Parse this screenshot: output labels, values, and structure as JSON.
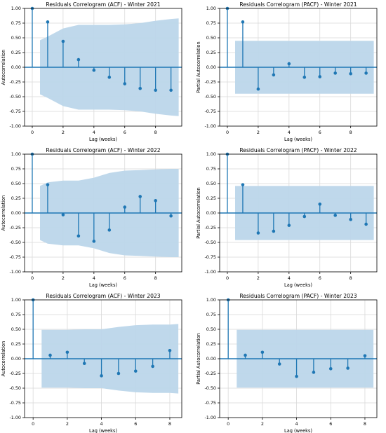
{
  "colors": {
    "stem": "#1f77b4",
    "band": "#bcd6ea",
    "grid": "#d9d9d9",
    "axis": "#000000"
  },
  "chart_data": [
    {
      "type": "stem",
      "title": "Residuals Correlogram (ACF) - Winter 2021",
      "xlabel": "Lag (weeks)",
      "ylabel": "Autocorrelation",
      "xlim": [
        -0.5,
        9.7
      ],
      "ylim": [
        -1.0,
        1.0
      ],
      "xticks": [
        0,
        2,
        4,
        6,
        8
      ],
      "yticks": [
        -1.0,
        -0.75,
        -0.5,
        -0.25,
        0.0,
        0.25,
        0.5,
        0.75,
        1.0
      ],
      "grid": true,
      "lags": [
        0,
        1,
        2,
        3,
        4,
        5,
        6,
        7,
        8,
        9
      ],
      "values": [
        1.0,
        0.77,
        0.44,
        0.13,
        -0.05,
        -0.17,
        -0.28,
        -0.36,
        -0.39,
        -0.39
      ],
      "confint": {
        "x": [
          0.5,
          1,
          2,
          3,
          4,
          5,
          6,
          7,
          8,
          9,
          9.5
        ],
        "upper": [
          0.46,
          0.52,
          0.66,
          0.72,
          0.72,
          0.72,
          0.73,
          0.75,
          0.79,
          0.82,
          0.83
        ],
        "lower": [
          -0.46,
          -0.52,
          -0.66,
          -0.72,
          -0.72,
          -0.72,
          -0.73,
          -0.75,
          -0.79,
          -0.82,
          -0.83
        ]
      }
    },
    {
      "type": "stem",
      "title": "Residuals Correlogram (PACF) - Winter 2021",
      "xlabel": "Lag (weeks)",
      "ylabel": "Partial Autocorrelation",
      "xlim": [
        -0.5,
        9.7
      ],
      "ylim": [
        -1.0,
        1.0
      ],
      "xticks": [
        0,
        2,
        4,
        6,
        8
      ],
      "yticks": [
        -1.0,
        -0.75,
        -0.5,
        -0.25,
        0.0,
        0.25,
        0.5,
        0.75,
        1.0
      ],
      "grid": true,
      "lags": [
        0,
        1,
        2,
        3,
        4,
        5,
        6,
        7,
        8,
        9
      ],
      "values": [
        1.0,
        0.77,
        -0.37,
        -0.13,
        0.06,
        -0.17,
        -0.16,
        -0.1,
        -0.11,
        -0.1
      ],
      "confint": {
        "x": [
          0.5,
          9.5
        ],
        "upper": [
          0.45,
          0.45
        ],
        "lower": [
          -0.45,
          -0.45
        ]
      }
    },
    {
      "type": "stem",
      "title": "Residuals Correlogram (ACF) - Winter 2022",
      "xlabel": "Lag (weeks)",
      "ylabel": "Autocorrelation",
      "xlim": [
        -0.5,
        9.7
      ],
      "ylim": [
        -1.0,
        1.0
      ],
      "xticks": [
        0,
        2,
        4,
        6,
        8
      ],
      "yticks": [
        -1.0,
        -0.75,
        -0.5,
        -0.25,
        0.0,
        0.25,
        0.5,
        0.75,
        1.0
      ],
      "grid": true,
      "lags": [
        0,
        1,
        2,
        3,
        4,
        5,
        6,
        7,
        8,
        9
      ],
      "values": [
        1.0,
        0.48,
        -0.03,
        -0.39,
        -0.48,
        -0.29,
        0.1,
        0.28,
        0.21,
        -0.05
      ],
      "confint": {
        "x": [
          0.5,
          1,
          2,
          3,
          4,
          5,
          6,
          7,
          8,
          9,
          9.5
        ],
        "upper": [
          0.46,
          0.52,
          0.55,
          0.55,
          0.6,
          0.68,
          0.72,
          0.73,
          0.74,
          0.75,
          0.75
        ],
        "lower": [
          -0.46,
          -0.52,
          -0.55,
          -0.55,
          -0.6,
          -0.68,
          -0.72,
          -0.73,
          -0.74,
          -0.75,
          -0.75
        ]
      }
    },
    {
      "type": "stem",
      "title": "Residuals Correlogram (PACF) - Winter 2022",
      "xlabel": "Lag (weeks)",
      "ylabel": "Partial Autocorrelation",
      "xlim": [
        -0.5,
        9.7
      ],
      "ylim": [
        -1.0,
        1.0
      ],
      "xticks": [
        0,
        2,
        4,
        6,
        8
      ],
      "yticks": [
        -1.0,
        -0.75,
        -0.5,
        -0.25,
        0.0,
        0.25,
        0.5,
        0.75,
        1.0
      ],
      "grid": true,
      "lags": [
        0,
        1,
        2,
        3,
        4,
        5,
        6,
        7,
        8,
        9
      ],
      "values": [
        1.0,
        0.48,
        -0.34,
        -0.31,
        -0.21,
        -0.06,
        0.15,
        -0.04,
        -0.11,
        -0.19
      ],
      "confint": {
        "x": [
          0.5,
          9.5
        ],
        "upper": [
          0.46,
          0.46
        ],
        "lower": [
          -0.46,
          -0.46
        ]
      }
    },
    {
      "type": "stem",
      "title": "Residuals Correlogram (ACF) - Winter 2023",
      "xlabel": "Lag (weeks)",
      "ylabel": "Autocorrelation",
      "xlim": [
        -0.5,
        8.7
      ],
      "ylim": [
        -1.0,
        1.0
      ],
      "xticks": [
        0,
        2,
        4,
        6,
        8
      ],
      "yticks": [
        -1.0,
        -0.75,
        -0.5,
        -0.25,
        0.0,
        0.25,
        0.5,
        0.75,
        1.0
      ],
      "grid": true,
      "lags": [
        0,
        1,
        2,
        3,
        4,
        5,
        6,
        7,
        8
      ],
      "values": [
        1.0,
        0.06,
        0.11,
        -0.08,
        -0.29,
        -0.25,
        -0.21,
        -0.13,
        0.14
      ],
      "confint": {
        "x": [
          0.5,
          1,
          2,
          3,
          4,
          5,
          6,
          7,
          8,
          8.5
        ],
        "upper": [
          0.49,
          0.49,
          0.49,
          0.5,
          0.5,
          0.54,
          0.57,
          0.58,
          0.58,
          0.59
        ],
        "lower": [
          -0.49,
          -0.49,
          -0.49,
          -0.5,
          -0.5,
          -0.54,
          -0.57,
          -0.58,
          -0.58,
          -0.59
        ]
      }
    },
    {
      "type": "stem",
      "title": "Residuals Correlogram (PACF) - Winter 2023",
      "xlabel": "Lag (weeks)",
      "ylabel": "Partial Autocorrelation",
      "xlim": [
        -0.5,
        8.7
      ],
      "ylim": [
        -1.0,
        1.0
      ],
      "xticks": [
        0,
        2,
        4,
        6,
        8
      ],
      "yticks": [
        -1.0,
        -0.75,
        -0.5,
        -0.25,
        0.0,
        0.25,
        0.5,
        0.75,
        1.0
      ],
      "grid": true,
      "lags": [
        0,
        1,
        2,
        3,
        4,
        5,
        6,
        7,
        8
      ],
      "values": [
        1.0,
        0.06,
        0.11,
        -0.09,
        -0.3,
        -0.23,
        -0.17,
        -0.16,
        0.05
      ],
      "confint": {
        "x": [
          0.5,
          8.5
        ],
        "upper": [
          0.49,
          0.49
        ],
        "lower": [
          -0.49,
          -0.49
        ]
      }
    }
  ]
}
